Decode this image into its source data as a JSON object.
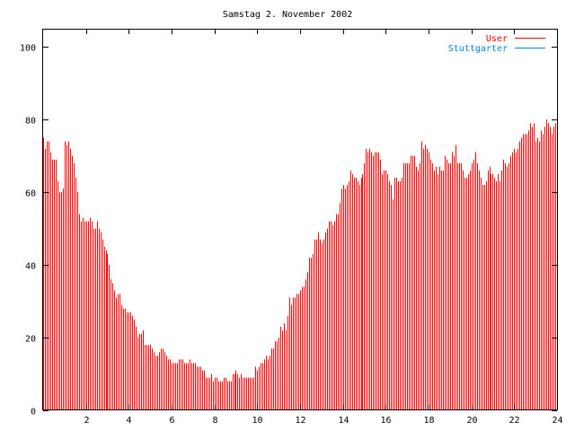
{
  "chart_data": {
    "type": "bar",
    "title": "Samstag 2. November 2002",
    "xlabel": "",
    "ylabel": "",
    "xlim": [
      0,
      24
    ],
    "ylim": [
      0,
      105
    ],
    "x_step": 0.08333,
    "x_ticks": [
      "2",
      "4",
      "6",
      "8",
      "10",
      "12",
      "14",
      "16",
      "18",
      "20",
      "22",
      "24"
    ],
    "y_ticks": [
      "0",
      "20",
      "40",
      "60",
      "80",
      "100"
    ],
    "legend_position": "top-right",
    "series": [
      {
        "name": "User",
        "color": "#ff0000",
        "style": "impulses",
        "values": [
          75,
          72,
          74,
          74,
          71,
          69,
          69,
          69,
          63,
          60,
          60,
          61,
          74,
          73,
          74,
          72,
          70,
          68,
          64,
          60,
          54,
          52,
          53,
          52,
          52,
          52,
          53,
          52,
          50,
          50,
          52,
          50,
          49,
          47,
          45,
          44,
          43,
          40,
          36,
          35,
          33,
          31,
          32,
          32,
          29,
          28,
          28,
          27,
          27,
          27,
          26,
          25,
          23,
          20,
          21,
          21,
          22,
          18,
          18,
          18,
          18,
          17,
          16,
          15,
          15,
          16,
          17,
          17,
          16,
          15,
          14,
          14,
          13,
          13,
          13,
          13,
          14,
          14,
          14,
          13,
          13,
          13,
          14,
          13,
          13,
          13,
          12,
          12,
          12,
          11,
          11,
          9,
          9,
          9,
          10,
          8,
          9,
          9,
          8,
          8,
          8,
          9,
          9,
          8,
          8,
          8,
          10,
          10,
          11,
          10,
          9,
          10,
          9,
          9,
          9,
          9,
          9,
          9,
          9,
          12,
          11,
          12,
          13,
          13,
          14,
          15,
          14,
          15,
          17,
          17,
          19,
          19,
          20,
          23,
          22,
          24,
          22,
          26,
          31,
          29,
          31,
          31,
          32,
          32,
          33,
          34,
          34,
          36,
          38,
          42,
          42,
          43,
          47,
          47,
          49,
          47,
          46,
          47,
          49,
          50,
          52,
          52,
          51,
          52,
          54,
          54,
          57,
          61,
          62,
          61,
          62,
          63,
          66,
          65,
          64,
          64,
          63,
          62,
          64,
          65,
          68,
          72,
          71,
          72,
          71,
          70,
          71,
          71,
          71,
          69,
          65,
          66,
          66,
          65,
          63,
          62,
          58,
          64,
          64,
          63,
          63,
          64,
          68,
          68,
          68,
          68,
          70,
          70,
          70,
          67,
          66,
          68,
          74,
          72,
          73,
          72,
          71,
          69,
          68,
          66,
          67,
          65,
          67,
          66,
          66,
          70,
          69,
          68,
          68,
          71,
          70,
          73,
          68,
          68,
          68,
          66,
          64,
          64,
          65,
          66,
          68,
          69,
          71,
          68,
          66,
          64,
          62,
          62,
          63,
          66,
          67,
          65,
          65,
          64,
          63,
          65,
          63,
          66,
          69,
          68,
          67,
          68,
          70,
          71,
          72,
          71,
          72,
          74,
          75,
          76,
          76,
          76,
          77,
          79,
          78,
          79,
          74,
          75,
          74,
          77,
          76,
          78,
          80,
          79,
          78,
          76,
          78,
          79
        ]
      },
      {
        "name": "Stuttgarter",
        "color": "#0080ff",
        "style": "lines",
        "values": [
          0
        ]
      }
    ]
  }
}
